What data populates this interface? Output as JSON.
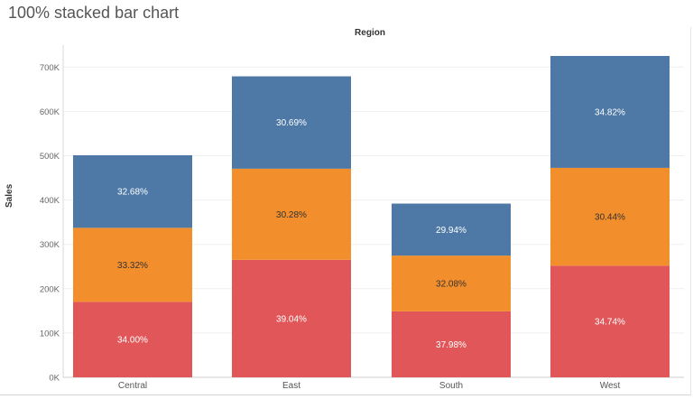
{
  "title": "100% stacked bar chart",
  "column_header": "Region",
  "chart_data": {
    "type": "bar",
    "stacked": true,
    "title": "100% stacked bar chart",
    "xlabel": "Region",
    "ylabel": "Sales",
    "ylim": [
      0,
      720000
    ],
    "yticks": [
      0,
      100000,
      200000,
      300000,
      400000,
      500000,
      600000,
      700000
    ],
    "ytick_labels": [
      "0K",
      "100K",
      "200K",
      "300K",
      "400K",
      "500K",
      "600K",
      "700K"
    ],
    "grid": true,
    "categories": [
      "Central",
      "East",
      "South",
      "West"
    ],
    "totals": [
      501000,
      679000,
      392000,
      725000
    ],
    "series": [
      {
        "color": "#e15759",
        "share_labels": [
          "34.00%",
          "39.04%",
          "37.98%",
          "34.74%"
        ],
        "values": [
          170340,
          265080,
          148880,
          251870
        ]
      },
      {
        "color": "#f28e2b",
        "share_labels": [
          "33.32%",
          "30.28%",
          "32.08%",
          "30.44%"
        ],
        "values": [
          166930,
          205600,
          125750,
          220690
        ]
      },
      {
        "color": "#4e79a7",
        "share_labels": [
          "32.68%",
          "30.69%",
          "29.94%",
          "34.82%"
        ],
        "values": [
          163730,
          208380,
          117360,
          252450
        ]
      }
    ]
  }
}
